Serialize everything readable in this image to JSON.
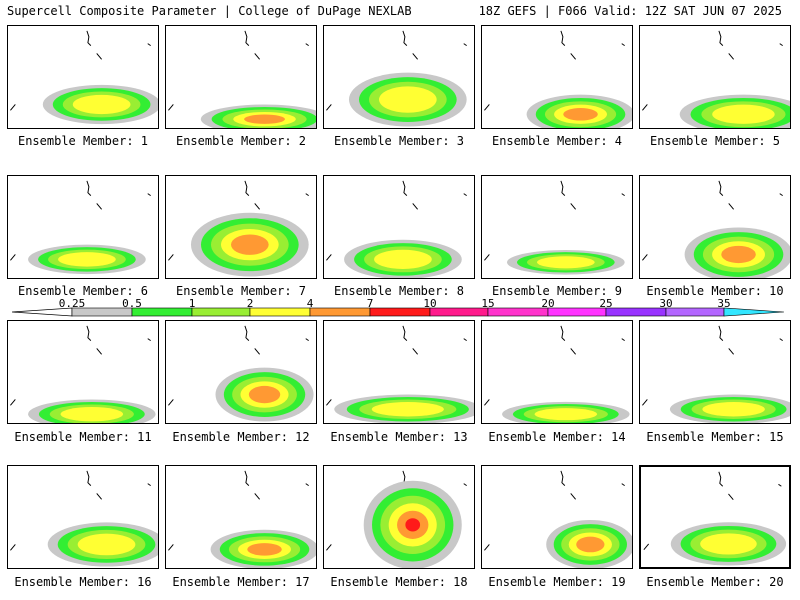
{
  "header": {
    "title_left": "Supercell Composite Parameter | College of DuPage NEXLAB",
    "title_right": "18Z GEFS | F066 Valid: 12Z SAT JUN 07 2025"
  },
  "colorbar": {
    "ticks": [
      "0.25",
      "0.5",
      "1",
      "2",
      "4",
      "7",
      "10",
      "15",
      "20",
      "25",
      "30",
      "35"
    ],
    "colors": [
      "#c8c8c8",
      "#33ee33",
      "#99ee33",
      "#ffff33",
      "#ff9933",
      "#ff1a1a",
      "#ff1a8c",
      "#ff33cc",
      "#ff33ff",
      "#9933ff",
      "#b366ff",
      "#33e6ff"
    ]
  },
  "panels": [
    {
      "label": "Ensemble Member: 1",
      "level": 3
    },
    {
      "label": "Ensemble Member: 2",
      "level": 4
    },
    {
      "label": "Ensemble Member: 3",
      "level": 3
    },
    {
      "label": "Ensemble Member: 4",
      "level": 4
    },
    {
      "label": "Ensemble Member: 5",
      "level": 3
    },
    {
      "label": "Ensemble Member: 6",
      "level": 3
    },
    {
      "label": "Ensemble Member: 7",
      "level": 4
    },
    {
      "label": "Ensemble Member: 8",
      "level": 3
    },
    {
      "label": "Ensemble Member: 9",
      "level": 3
    },
    {
      "label": "Ensemble Member: 10",
      "level": 4
    },
    {
      "label": "Ensemble Member: 11",
      "level": 3
    },
    {
      "label": "Ensemble Member: 12",
      "level": 4
    },
    {
      "label": "Ensemble Member: 13",
      "level": 3
    },
    {
      "label": "Ensemble Member: 14",
      "level": 3
    },
    {
      "label": "Ensemble Member: 15",
      "level": 3
    },
    {
      "label": "Ensemble Member: 16",
      "level": 3
    },
    {
      "label": "Ensemble Member: 17",
      "level": 4
    },
    {
      "label": "Ensemble Member: 18",
      "level": 5
    },
    {
      "label": "Ensemble Member: 19",
      "level": 4
    },
    {
      "label": "Ensemble Member: 20",
      "level": 3
    }
  ]
}
